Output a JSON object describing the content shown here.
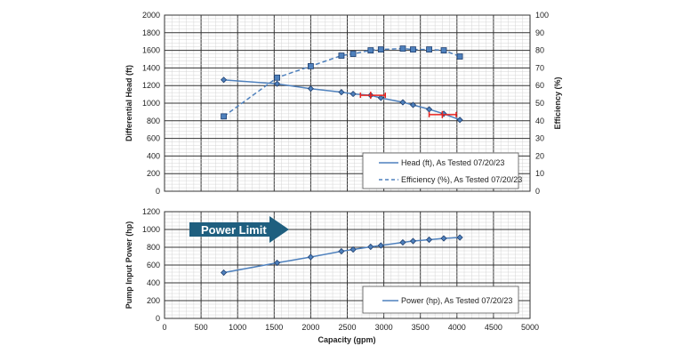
{
  "chart_data": [
    {
      "type": "line",
      "xlabel": "",
      "ylabel": "Differential Head (ft)",
      "y2label": "Efficiency (%)",
      "xlim": [
        0,
        5000
      ],
      "ylim": [
        0,
        2000
      ],
      "y2lim": [
        0,
        100
      ],
      "xticks": [
        "0",
        "500",
        "1000",
        "1500",
        "2000",
        "2500",
        "3000",
        "3500",
        "4000",
        "4500",
        "5000"
      ],
      "yticks": [
        "0",
        "200",
        "400",
        "600",
        "800",
        "1000",
        "1200",
        "1400",
        "1600",
        "1800",
        "2000"
      ],
      "y2ticks": [
        "0",
        "10",
        "20",
        "30",
        "40",
        "50",
        "60",
        "70",
        "80",
        "90",
        "100"
      ],
      "grid": true,
      "legend": "bottom-right",
      "series": [
        {
          "name": "Head (ft), As Tested 07/20/23",
          "axis": "left",
          "style": "solid",
          "marker": "diamond",
          "color": "#4f81bd",
          "x": [
            810,
            1540,
            2000,
            2420,
            2580,
            2820,
            2960,
            3260,
            3400,
            3620,
            3820,
            4040
          ],
          "y": [
            1265,
            1220,
            1165,
            1125,
            1105,
            1090,
            1060,
            1010,
            980,
            930,
            880,
            810
          ]
        },
        {
          "name": "Efficiency (%), As Tested 07/20/23",
          "axis": "right",
          "style": "dashed",
          "marker": "square",
          "color": "#4f81bd",
          "x": [
            810,
            1540,
            2000,
            2420,
            2580,
            2820,
            2960,
            3260,
            3400,
            3620,
            3820,
            4040
          ],
          "y": [
            42.5,
            64.5,
            71,
            77,
            78,
            80,
            80.5,
            81,
            80.5,
            80.5,
            80,
            76.5
          ]
        }
      ],
      "error_bars": [
        {
          "x": 2820,
          "y": 1090,
          "xmin": 2680,
          "xmax": 3020,
          "color": "#e8231f"
        },
        {
          "x": 3800,
          "y": 870,
          "xmin": 3620,
          "xmax": 3990,
          "color": "#e8231f"
        }
      ]
    },
    {
      "type": "line",
      "xlabel": "Capacity (gpm)",
      "ylabel": "Pump Input Power (hp)",
      "xlim": [
        0,
        5000
      ],
      "ylim": [
        0,
        1200
      ],
      "xticks": [
        "0",
        "500",
        "1000",
        "1500",
        "2000",
        "2500",
        "3000",
        "3500",
        "4000",
        "4500",
        "5000"
      ],
      "yticks": [
        "0",
        "200",
        "400",
        "600",
        "800",
        "1000",
        "1200"
      ],
      "grid": true,
      "legend": "bottom-right",
      "annotation": {
        "text": "Power Limit",
        "color": "#1f5f7f"
      },
      "series": [
        {
          "name": "Power (hp), As Tested 07/20/23",
          "style": "solid",
          "marker": "diamond",
          "color": "#4f81bd",
          "x": [
            810,
            1540,
            2000,
            2420,
            2580,
            2820,
            2960,
            3260,
            3400,
            3620,
            3820,
            4040
          ],
          "y": [
            515,
            625,
            690,
            755,
            775,
            805,
            820,
            855,
            870,
            885,
            900,
            910
          ]
        }
      ]
    }
  ]
}
